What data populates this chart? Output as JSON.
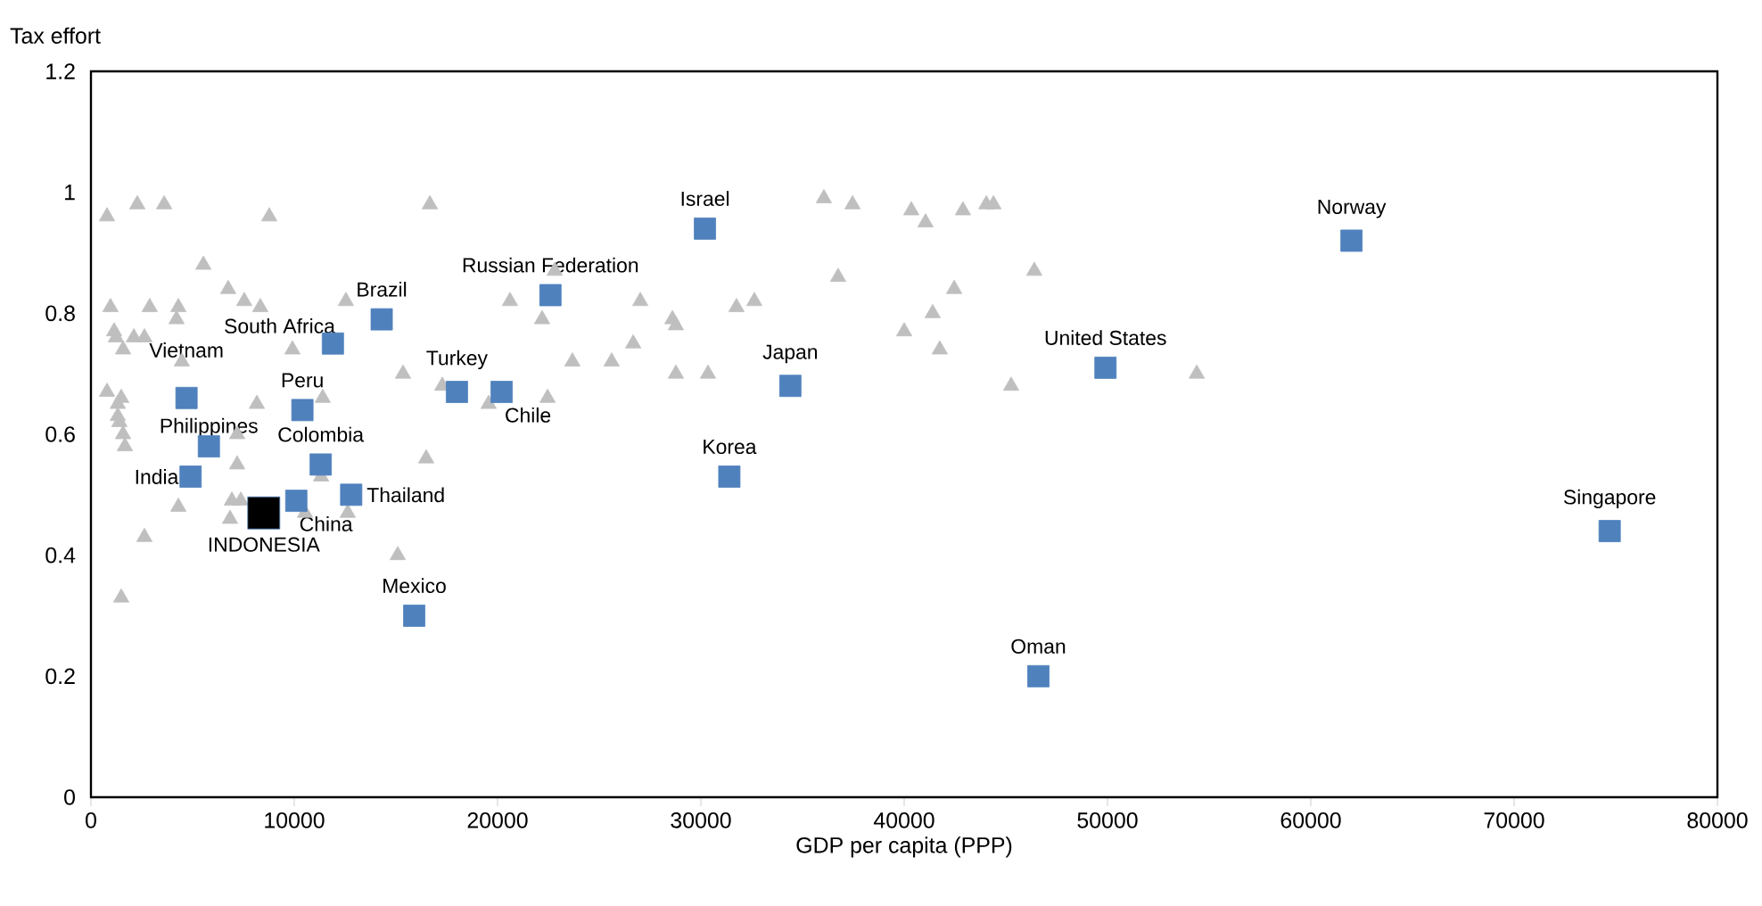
{
  "chart_data": {
    "type": "scatter",
    "xlabel": "GDP per capita (PPP)",
    "ylabel": "Tax effort",
    "xlim": [
      0,
      80000
    ],
    "xticks": [
      0,
      10000,
      20000,
      30000,
      40000,
      50000,
      60000,
      70000,
      80000
    ],
    "ylim": [
      0,
      1.2
    ],
    "yticks": [
      0,
      0.2,
      0.4,
      0.6,
      0.8,
      1,
      1.2
    ],
    "grid": false,
    "series": [
      {
        "color": "#bfbfbf",
        "marker": "triangle",
        "x": [
          790,
          2280,
          3600,
          8770,
          16670,
          5530,
          6750,
          7540,
          8330,
          960,
          2890,
          4300,
          4210,
          1140,
          1230,
          2110,
          2630,
          1580,
          4470,
          9910,
          12540,
          15350,
          20610,
          22190,
          22810,
          27020,
          26670,
          23680,
          25610,
          17280,
          19560,
          22460,
          790,
          1490,
          1320,
          1320,
          1400,
          1580,
          1670,
          8160,
          11400,
          7190,
          7190,
          11320,
          16490,
          4300,
          6930,
          7370,
          6840,
          10530,
          12630,
          2630,
          15090,
          1490,
          28600,
          28770,
          31750,
          32630,
          28770,
          30350,
          36050,
          37460,
          40350,
          41050,
          42890,
          44040,
          44390,
          36750,
          46400,
          42460,
          41400,
          40000,
          41750,
          45260,
          54390
        ],
        "values": [
          0.96,
          0.98,
          0.98,
          0.96,
          0.98,
          0.88,
          0.84,
          0.82,
          0.81,
          0.81,
          0.81,
          0.81,
          0.79,
          0.77,
          0.76,
          0.76,
          0.76,
          0.74,
          0.72,
          0.74,
          0.82,
          0.7,
          0.82,
          0.79,
          0.87,
          0.82,
          0.75,
          0.72,
          0.72,
          0.68,
          0.65,
          0.66,
          0.67,
          0.66,
          0.65,
          0.63,
          0.62,
          0.6,
          0.58,
          0.65,
          0.66,
          0.6,
          0.55,
          0.53,
          0.56,
          0.48,
          0.49,
          0.49,
          0.46,
          0.47,
          0.47,
          0.43,
          0.4,
          0.33,
          0.79,
          0.78,
          0.81,
          0.82,
          0.7,
          0.7,
          0.99,
          0.98,
          0.97,
          0.95,
          0.97,
          0.98,
          0.98,
          0.86,
          0.87,
          0.84,
          0.8,
          0.77,
          0.74,
          0.68,
          0.7
        ]
      },
      {
        "name": "Israel",
        "color": "#4f81bd",
        "marker": "square",
        "x": [
          30200
        ],
        "values": [
          0.94
        ]
      },
      {
        "name": "Norway",
        "color": "#4f81bd",
        "marker": "square",
        "x": [
          62000
        ],
        "values": [
          0.92
        ]
      },
      {
        "name": "Russian Federation",
        "color": "#4f81bd",
        "marker": "square",
        "x": [
          22600
        ],
        "values": [
          0.83
        ]
      },
      {
        "name": "Brazil",
        "color": "#4f81bd",
        "marker": "square",
        "x": [
          14300
        ],
        "values": [
          0.79
        ]
      },
      {
        "name": "South Africa",
        "color": "#4f81bd",
        "marker": "square",
        "x": [
          11900
        ],
        "values": [
          0.75
        ]
      },
      {
        "name": "United States",
        "color": "#4f81bd",
        "marker": "square",
        "x": [
          49900
        ],
        "values": [
          0.71
        ]
      },
      {
        "name": "Japan",
        "color": "#4f81bd",
        "marker": "square",
        "x": [
          34400
        ],
        "values": [
          0.68
        ]
      },
      {
        "name": "Turkey",
        "color": "#4f81bd",
        "marker": "square",
        "x": [
          18000
        ],
        "values": [
          0.67
        ]
      },
      {
        "name": "Chile",
        "color": "#4f81bd",
        "marker": "square",
        "x": [
          20200
        ],
        "values": [
          0.67
        ]
      },
      {
        "name": "Vietnam",
        "color": "#4f81bd",
        "marker": "square",
        "x": [
          4700
        ],
        "values": [
          0.66
        ]
      },
      {
        "name": "Peru",
        "color": "#4f81bd",
        "marker": "square",
        "x": [
          10400
        ],
        "values": [
          0.64
        ]
      },
      {
        "name": "Philippines",
        "color": "#4f81bd",
        "marker": "square",
        "x": [
          5800
        ],
        "values": [
          0.58
        ]
      },
      {
        "name": "Colombia",
        "color": "#4f81bd",
        "marker": "square",
        "x": [
          11300
        ],
        "values": [
          0.55
        ]
      },
      {
        "name": "India",
        "color": "#4f81bd",
        "marker": "square",
        "x": [
          4900
        ],
        "values": [
          0.53
        ]
      },
      {
        "name": "Korea",
        "color": "#4f81bd",
        "marker": "square",
        "x": [
          31400
        ],
        "values": [
          0.53
        ]
      },
      {
        "name": "Thailand",
        "color": "#4f81bd",
        "marker": "square",
        "x": [
          12800
        ],
        "values": [
          0.5
        ]
      },
      {
        "name": "China",
        "color": "#4f81bd",
        "marker": "square",
        "x": [
          10100
        ],
        "values": [
          0.49
        ]
      },
      {
        "name": "INDONESIA",
        "color": "#000000",
        "marker": "square",
        "x": [
          8500
        ],
        "values": [
          0.47
        ]
      },
      {
        "name": "Singapore",
        "color": "#4f81bd",
        "marker": "square",
        "x": [
          74700
        ],
        "values": [
          0.44
        ]
      },
      {
        "name": "Mexico",
        "color": "#4f81bd",
        "marker": "square",
        "x": [
          15900
        ],
        "values": [
          0.3
        ]
      },
      {
        "name": "Oman",
        "color": "#4f81bd",
        "marker": "square",
        "x": [
          46600
        ],
        "values": [
          0.2
        ]
      }
    ]
  }
}
